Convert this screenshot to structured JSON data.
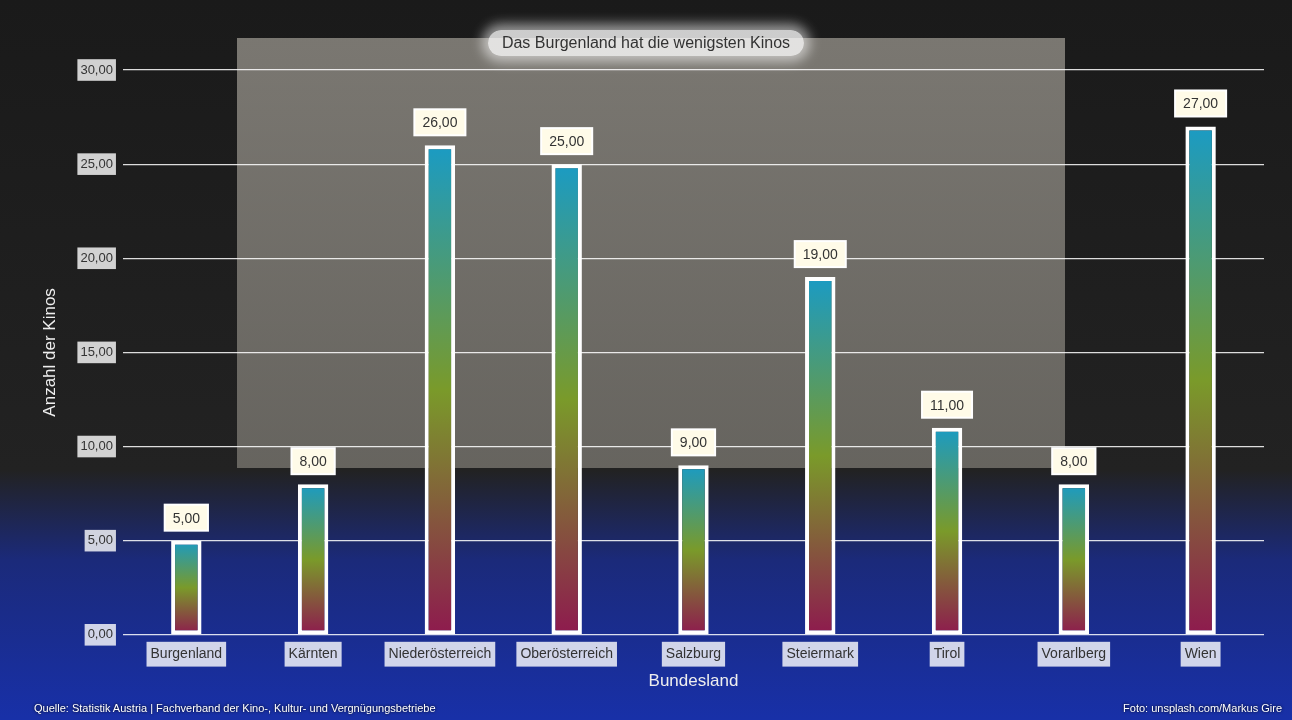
{
  "chart_data": {
    "type": "bar",
    "title": "Das Burgenland hat die wenigsten Kinos",
    "x_label": "Bundesland",
    "y_label": "Anzahl der Kinos",
    "categories": [
      "Burgenland",
      "Kärnten",
      "Niederösterreich",
      "Oberösterreich",
      "Salzburg",
      "Steiermark",
      "Tirol",
      "Vorarlberg",
      "Wien"
    ],
    "values": [
      5,
      8,
      26,
      25,
      9,
      19,
      11,
      8,
      27
    ],
    "value_labels": [
      "5,00",
      "8,00",
      "26,00",
      "25,00",
      "9,00",
      "19,00",
      "11,00",
      "8,00",
      "27,00"
    ],
    "color": "#1a9bc4",
    "ylim": [
      0,
      30
    ],
    "yticks": [
      {
        "value": 0,
        "label": "0,00"
      },
      {
        "value": 5,
        "label": "5,00"
      },
      {
        "value": 10,
        "label": "10,00"
      },
      {
        "value": 15,
        "label": "15,00"
      },
      {
        "value": 20,
        "label": "20,00"
      },
      {
        "value": 25,
        "label": "25,00"
      },
      {
        "value": 30,
        "label": "30,00"
      }
    ],
    "grid": true,
    "data_labels": true,
    "source": "Quelle: Statistik Austria | Fachverband der Kino-, Kultur- und Vergnügungsbetriebe",
    "photo_credit": "Foto: unsplash.com/Markus Gire"
  }
}
